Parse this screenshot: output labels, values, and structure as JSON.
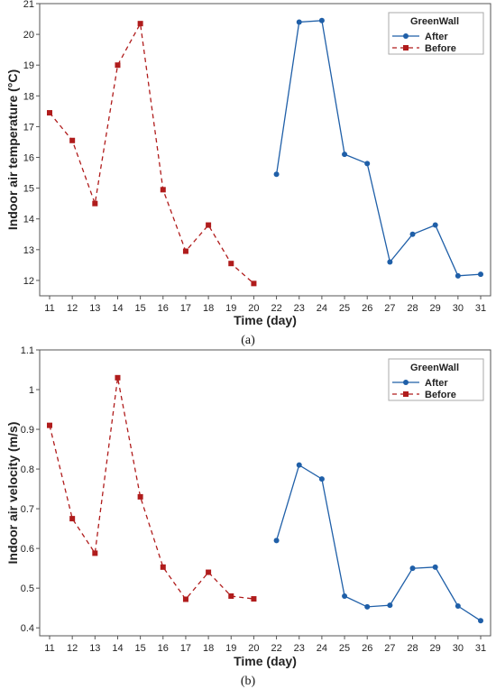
{
  "chart_data": [
    {
      "type": "line",
      "panel_label": "(a)",
      "xlabel": "Time (day)",
      "ylabel": "Indoor air temperature (°C)",
      "ylim": [
        11.5,
        21
      ],
      "yticks": [
        12,
        13,
        14,
        15,
        16,
        17,
        18,
        19,
        20,
        21
      ],
      "categories": [
        "11",
        "12",
        "13",
        "14",
        "15",
        "16",
        "17",
        "18",
        "19",
        "20",
        "22",
        "23",
        "24",
        "25",
        "26",
        "27",
        "28",
        "29",
        "30",
        "31"
      ],
      "legend": {
        "title": "GreenWall",
        "position": "top-right"
      },
      "series": [
        {
          "name": "After",
          "color": "#1f5fa8",
          "line": "solid",
          "marker": "circle",
          "x": [
            "22",
            "23",
            "24",
            "25",
            "26",
            "27",
            "28",
            "29",
            "30",
            "31"
          ],
          "values": [
            15.45,
            20.4,
            20.45,
            16.1,
            15.8,
            12.6,
            13.5,
            13.8,
            12.15,
            12.2
          ]
        },
        {
          "name": "Before",
          "color": "#b01c1c",
          "line": "dashed",
          "marker": "square",
          "x": [
            "11",
            "12",
            "13",
            "14",
            "15",
            "16",
            "17",
            "18",
            "19",
            "20"
          ],
          "values": [
            17.45,
            16.55,
            14.5,
            19.0,
            20.35,
            14.95,
            12.95,
            13.8,
            12.55,
            11.9
          ]
        }
      ]
    },
    {
      "type": "line",
      "panel_label": "(b)",
      "xlabel": "Time (day)",
      "ylabel": "Indoor air velocity (m/s)",
      "ylim": [
        0.38,
        1.1
      ],
      "yticks": [
        0.4,
        0.5,
        0.6,
        0.7,
        0.8,
        0.9,
        1.0,
        1.1
      ],
      "categories": [
        "11",
        "12",
        "13",
        "14",
        "15",
        "16",
        "17",
        "18",
        "19",
        "20",
        "22",
        "23",
        "24",
        "25",
        "26",
        "27",
        "28",
        "29",
        "30",
        "31"
      ],
      "legend": {
        "title": "GreenWall",
        "position": "top-right"
      },
      "series": [
        {
          "name": "After",
          "color": "#1f5fa8",
          "line": "solid",
          "marker": "circle",
          "x": [
            "22",
            "23",
            "24",
            "25",
            "26",
            "27",
            "28",
            "29",
            "30",
            "31"
          ],
          "values": [
            0.62,
            0.81,
            0.775,
            0.48,
            0.453,
            0.457,
            0.55,
            0.553,
            0.455,
            0.418
          ]
        },
        {
          "name": "Before",
          "color": "#b01c1c",
          "line": "dashed",
          "marker": "square",
          "x": [
            "11",
            "12",
            "13",
            "14",
            "15",
            "16",
            "17",
            "18",
            "19",
            "20"
          ],
          "values": [
            0.91,
            0.675,
            0.588,
            1.03,
            0.73,
            0.553,
            0.472,
            0.54,
            0.48,
            0.473
          ]
        }
      ]
    }
  ]
}
